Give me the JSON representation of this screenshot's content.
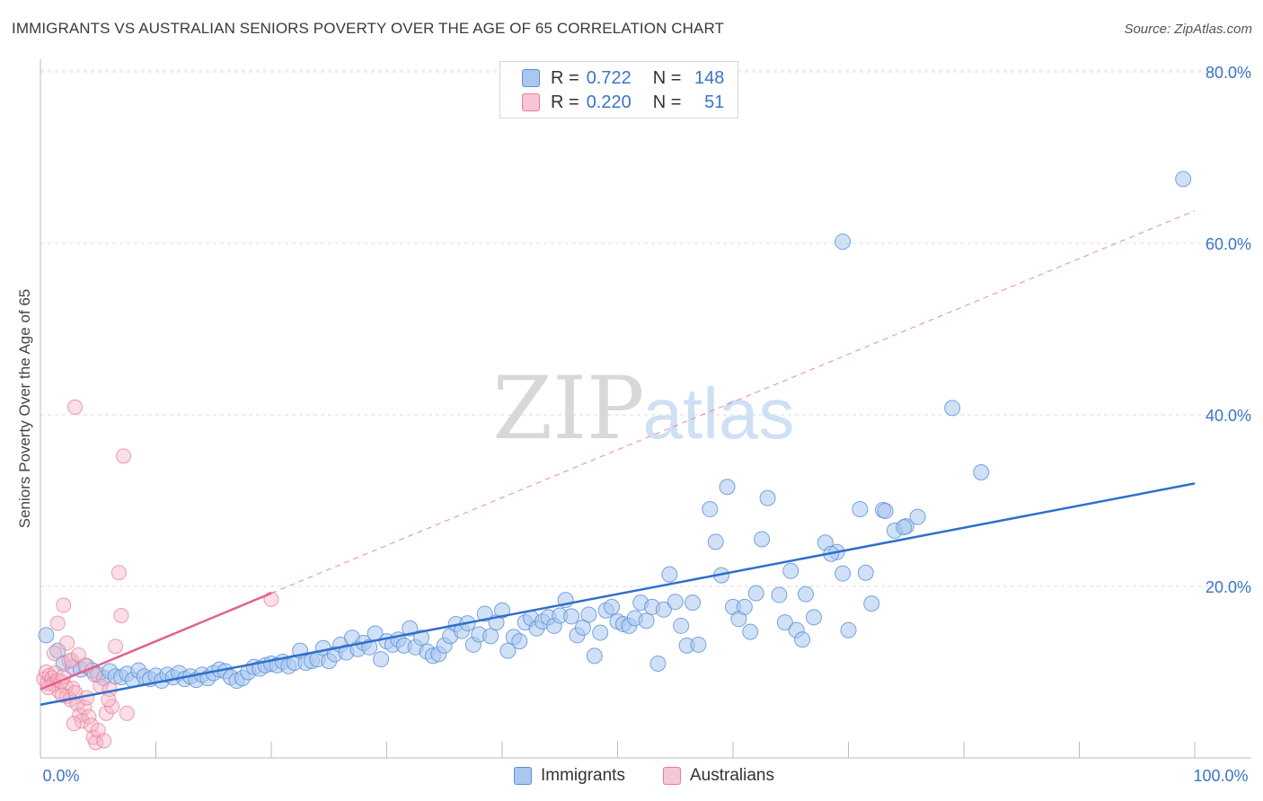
{
  "header": {
    "title": "IMMIGRANTS VS AUSTRALIAN SENIORS POVERTY OVER THE AGE OF 65 CORRELATION CHART",
    "source": "Source: ZipAtlas.com"
  },
  "watermark": {
    "part1": "ZIP",
    "part2": "atlas"
  },
  "legend": {
    "rows": [
      {
        "r_label": "R =",
        "r_value": "0.722",
        "n_label": "N =",
        "n_value": "148"
      },
      {
        "r_label": "R =",
        "r_value": "0.220",
        "n_label": "N =",
        "n_value": "51"
      }
    ],
    "bottom": [
      "Immigrants",
      "Australians"
    ]
  },
  "colors": {
    "immigrants_fill": "#a9c8f0",
    "immigrants_stroke": "#5b8fd4",
    "immigrants_line": "#2f6fcc",
    "australians_fill": "#f7b6c8",
    "australians_stroke": "#e77d9b",
    "australians_line": "#e0628b",
    "axis_label_blue": "#3a74c8"
  },
  "chart_data": {
    "type": "scatter",
    "title": "IMMIGRANTS VS AUSTRALIAN SENIORS POVERTY OVER THE AGE OF 65 CORRELATION CHART",
    "xlabel": "",
    "ylabel": "Seniors Poverty Over the Age of 65",
    "xlim": [
      0,
      100
    ],
    "ylim": [
      0,
      80
    ],
    "x_tick_labels": [
      "0.0%",
      "100.0%"
    ],
    "y_ticks": [
      20,
      40,
      60,
      80
    ],
    "y_tick_labels": [
      "20.0%",
      "40.0%",
      "60.0%",
      "80.0%"
    ],
    "grid": true,
    "legend_position": "top-center",
    "series": [
      {
        "name": "Immigrants",
        "r": 0.722,
        "n": 148,
        "trend": {
          "x": [
            0,
            100
          ],
          "y": [
            6.2,
            32.0
          ]
        },
        "points": [
          [
            0.5,
            14.3
          ],
          [
            1.5,
            12.5
          ],
          [
            2,
            11
          ],
          [
            2.8,
            10.6
          ],
          [
            3.5,
            10.3
          ],
          [
            4,
            10.7
          ],
          [
            4.5,
            10.2
          ],
          [
            5,
            9.7
          ],
          [
            5.5,
            9.3
          ],
          [
            6,
            10.1
          ],
          [
            6.5,
            9.5
          ],
          [
            7,
            9.4
          ],
          [
            7.5,
            9.8
          ],
          [
            8,
            9.1
          ],
          [
            8.5,
            10.2
          ],
          [
            9,
            9.5
          ],
          [
            9.5,
            9.2
          ],
          [
            10,
            9.6
          ],
          [
            10.5,
            9.0
          ],
          [
            11,
            9.7
          ],
          [
            11.5,
            9.4
          ],
          [
            12,
            9.9
          ],
          [
            12.5,
            9.2
          ],
          [
            13,
            9.5
          ],
          [
            13.5,
            9.1
          ],
          [
            14,
            9.7
          ],
          [
            14.5,
            9.3
          ],
          [
            15,
            9.9
          ],
          [
            15.5,
            10.3
          ],
          [
            16,
            10.1
          ],
          [
            16.5,
            9.4
          ],
          [
            17,
            9.0
          ],
          [
            17.5,
            9.3
          ],
          [
            18,
            10.0
          ],
          [
            18.5,
            10.6
          ],
          [
            19,
            10.4
          ],
          [
            19.5,
            10.8
          ],
          [
            20,
            11.0
          ],
          [
            20.5,
            10.8
          ],
          [
            21,
            11.2
          ],
          [
            21.5,
            10.7
          ],
          [
            22,
            11.1
          ],
          [
            22.5,
            12.5
          ],
          [
            23,
            11.1
          ],
          [
            23.5,
            11.3
          ],
          [
            24,
            11.5
          ],
          [
            24.5,
            12.8
          ],
          [
            25,
            11.3
          ],
          [
            25.5,
            12.1
          ],
          [
            26,
            13.2
          ],
          [
            26.5,
            12.3
          ],
          [
            27,
            14.0
          ],
          [
            27.5,
            12.7
          ],
          [
            28,
            13.4
          ],
          [
            28.5,
            12.9
          ],
          [
            29,
            14.5
          ],
          [
            29.5,
            11.5
          ],
          [
            30,
            13.6
          ],
          [
            30.5,
            13.2
          ],
          [
            31,
            13.8
          ],
          [
            31.5,
            13.1
          ],
          [
            32,
            15.1
          ],
          [
            32.5,
            12.9
          ],
          [
            33,
            14.0
          ],
          [
            33.5,
            12.4
          ],
          [
            34,
            11.9
          ],
          [
            34.5,
            12.1
          ],
          [
            35,
            13.1
          ],
          [
            35.5,
            14.2
          ],
          [
            36,
            15.6
          ],
          [
            36.5,
            14.8
          ],
          [
            37,
            15.7
          ],
          [
            37.5,
            13.2
          ],
          [
            38,
            14.4
          ],
          [
            38.5,
            16.8
          ],
          [
            39,
            14.2
          ],
          [
            39.5,
            15.8
          ],
          [
            40,
            17.2
          ],
          [
            40.5,
            12.5
          ],
          [
            41,
            14.1
          ],
          [
            41.5,
            13.6
          ],
          [
            42,
            15.8
          ],
          [
            42.5,
            16.3
          ],
          [
            43,
            15.1
          ],
          [
            43.5,
            15.9
          ],
          [
            44,
            16.4
          ],
          [
            44.5,
            15.4
          ],
          [
            45,
            16.6
          ],
          [
            45.5,
            18.4
          ],
          [
            46,
            16.5
          ],
          [
            46.5,
            14.3
          ],
          [
            47,
            15.2
          ],
          [
            47.5,
            16.7
          ],
          [
            48,
            11.9
          ],
          [
            48.5,
            14.6
          ],
          [
            49,
            17.2
          ],
          [
            49.5,
            17.6
          ],
          [
            50,
            15.9
          ],
          [
            50.5,
            15.6
          ],
          [
            51,
            15.4
          ],
          [
            51.5,
            16.3
          ],
          [
            52,
            18.1
          ],
          [
            52.5,
            16.0
          ],
          [
            53,
            17.6
          ],
          [
            53.5,
            11.0
          ],
          [
            54,
            17.3
          ],
          [
            54.5,
            21.4
          ],
          [
            55,
            18.2
          ],
          [
            55.5,
            15.4
          ],
          [
            56,
            13.1
          ],
          [
            56.5,
            18.1
          ],
          [
            57,
            13.2
          ],
          [
            58,
            29.0
          ],
          [
            58.5,
            25.2
          ],
          [
            59,
            21.3
          ],
          [
            59.5,
            31.6
          ],
          [
            60,
            17.6
          ],
          [
            60.5,
            16.2
          ],
          [
            61,
            17.6
          ],
          [
            62,
            19.2
          ],
          [
            62.5,
            25.5
          ],
          [
            63,
            30.3
          ],
          [
            64,
            19.0
          ],
          [
            64.5,
            15.8
          ],
          [
            65,
            21.8
          ],
          [
            65.5,
            14.9
          ],
          [
            66,
            13.8
          ],
          [
            67,
            16.4
          ],
          [
            68,
            25.1
          ],
          [
            69,
            24.0
          ],
          [
            69.5,
            21.5
          ],
          [
            70,
            14.9
          ],
          [
            71,
            29.0
          ],
          [
            71.5,
            21.6
          ],
          [
            72,
            18.0
          ],
          [
            73,
            28.9
          ],
          [
            74,
            26.5
          ],
          [
            75,
            27.0
          ],
          [
            76,
            28.1
          ],
          [
            81.5,
            33.3
          ],
          [
            79,
            40.8
          ],
          [
            69.5,
            60.2
          ],
          [
            99,
            67.5
          ],
          [
            73.2,
            28.8
          ],
          [
            74.8,
            26.9
          ],
          [
            68.5,
            23.8
          ],
          [
            66.3,
            19.1
          ],
          [
            61.5,
            14.7
          ]
        ]
      },
      {
        "name": "Australians",
        "r": 0.22,
        "n": 51,
        "trend": {
          "x": [
            0,
            20
          ],
          "y": [
            8.0,
            19.2
          ]
        },
        "dashed_extension": {
          "x": [
            20,
            100
          ],
          "y": [
            19.2,
            63.8
          ]
        },
        "points": [
          [
            0.3,
            9.2
          ],
          [
            0.5,
            10.0
          ],
          [
            0.6,
            8.7
          ],
          [
            0.8,
            9.6
          ],
          [
            1.0,
            9.3
          ],
          [
            1.1,
            8.6
          ],
          [
            1.3,
            9.9
          ],
          [
            1.5,
            9.0
          ],
          [
            1.6,
            7.8
          ],
          [
            1.8,
            8.9
          ],
          [
            2.0,
            9.5
          ],
          [
            2.2,
            8.3
          ],
          [
            2.3,
            7.2
          ],
          [
            2.5,
            11.3
          ],
          [
            2.6,
            6.8
          ],
          [
            2.8,
            8.1
          ],
          [
            3.0,
            7.6
          ],
          [
            3.2,
            6.3
          ],
          [
            3.4,
            5.0
          ],
          [
            3.6,
            4.3
          ],
          [
            3.8,
            5.9
          ],
          [
            4.0,
            7.0
          ],
          [
            4.2,
            4.8
          ],
          [
            4.4,
            3.8
          ],
          [
            4.6,
            2.4
          ],
          [
            4.8,
            1.8
          ],
          [
            5.0,
            3.2
          ],
          [
            5.2,
            8.4
          ],
          [
            5.5,
            2.0
          ],
          [
            5.7,
            5.2
          ],
          [
            6.0,
            8.0
          ],
          [
            6.2,
            6.0
          ],
          [
            6.5,
            13.0
          ],
          [
            6.8,
            21.6
          ],
          [
            7.0,
            16.6
          ],
          [
            7.2,
            35.2
          ],
          [
            7.5,
            5.2
          ],
          [
            3.0,
            40.9
          ],
          [
            1.5,
            15.7
          ],
          [
            2.0,
            17.8
          ],
          [
            2.3,
            13.4
          ],
          [
            1.2,
            12.2
          ],
          [
            2.7,
            11.4
          ],
          [
            3.3,
            12.0
          ],
          [
            20,
            18.5
          ],
          [
            0.7,
            8.2
          ],
          [
            1.9,
            7.3
          ],
          [
            3.9,
            10.8
          ],
          [
            4.7,
            9.7
          ],
          [
            5.9,
            6.8
          ],
          [
            2.9,
            4.0
          ]
        ]
      }
    ]
  }
}
